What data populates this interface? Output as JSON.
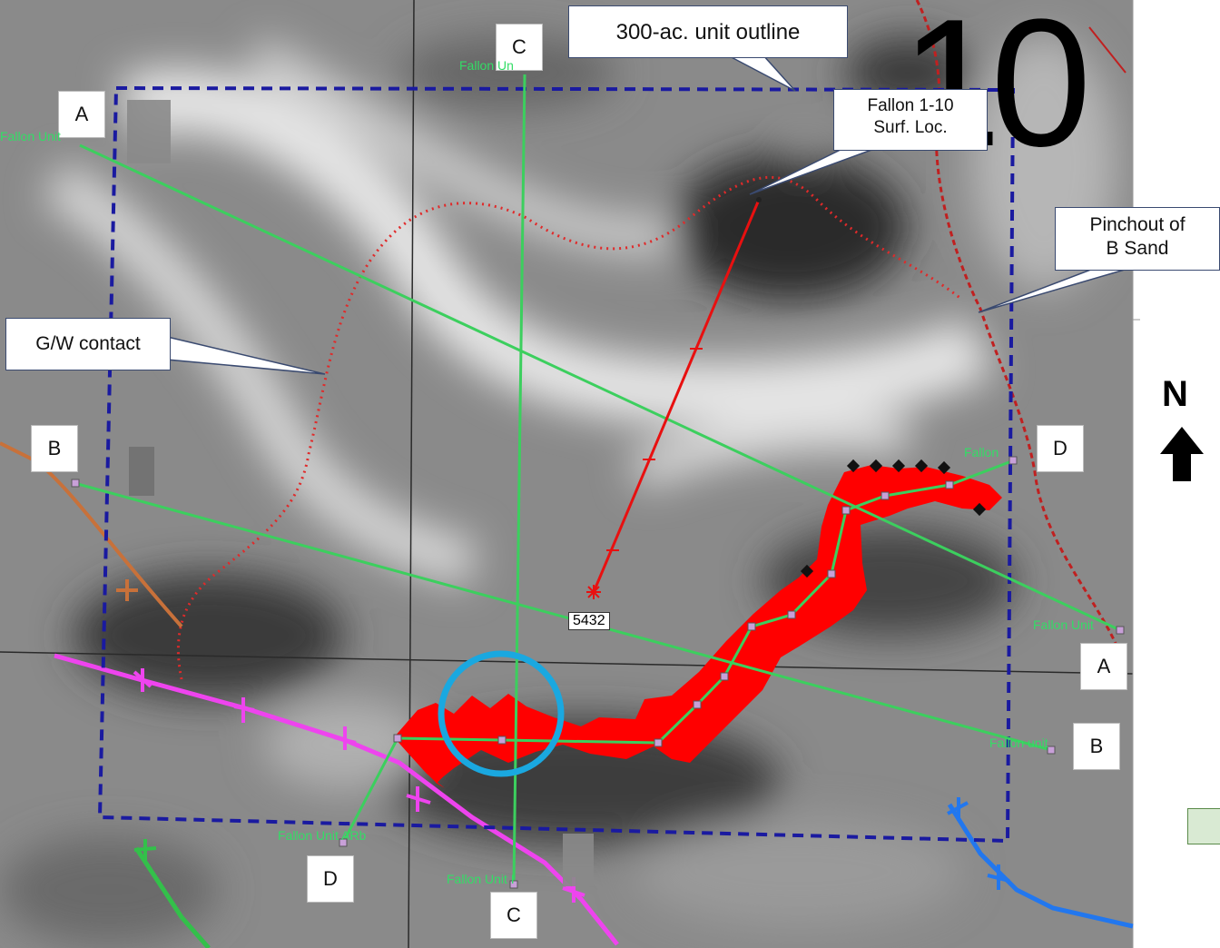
{
  "section_number": "10",
  "north_label": "N",
  "callouts": {
    "unit_outline": "300-ac. unit outline",
    "surface_location_line1": "Fallon 1-10",
    "surface_location_line2": "Surf. Loc.",
    "pinchout_line1": "Pinchout of",
    "pinchout_line2": "B Sand",
    "gw_contact": "G/W contact"
  },
  "cross_section_labels": {
    "a_start": "A",
    "a_end": "A",
    "b_start": "B",
    "b_end": "B",
    "c_start": "C",
    "c_end": "C",
    "d_start": "D",
    "d_end": "D"
  },
  "well_labels": {
    "top_c": "Fallon Un",
    "top_a": "Fallon Unit",
    "right_d": "Fallon",
    "right_a": "Fallon Unit",
    "right_b": "Fallon unit",
    "bottom_d": "Fallon Unit ARb",
    "bottom_c": "Fallon Unit I"
  },
  "depth_value": "5432",
  "colors": {
    "unit_outline": "#1a1aa0",
    "section_lines": "#3ccf5e",
    "wellbore_red": "#e81010",
    "anomaly": "#ff0000",
    "highlight_circle": "#1aa8e0",
    "fault_magenta": "#ee44ee",
    "fault_orange": "#cc6a33",
    "fault_blue": "#2277ee",
    "gw_contact": "#dd2222"
  },
  "icons": [
    "north-arrow-icon",
    "highlight-circle-icon"
  ]
}
